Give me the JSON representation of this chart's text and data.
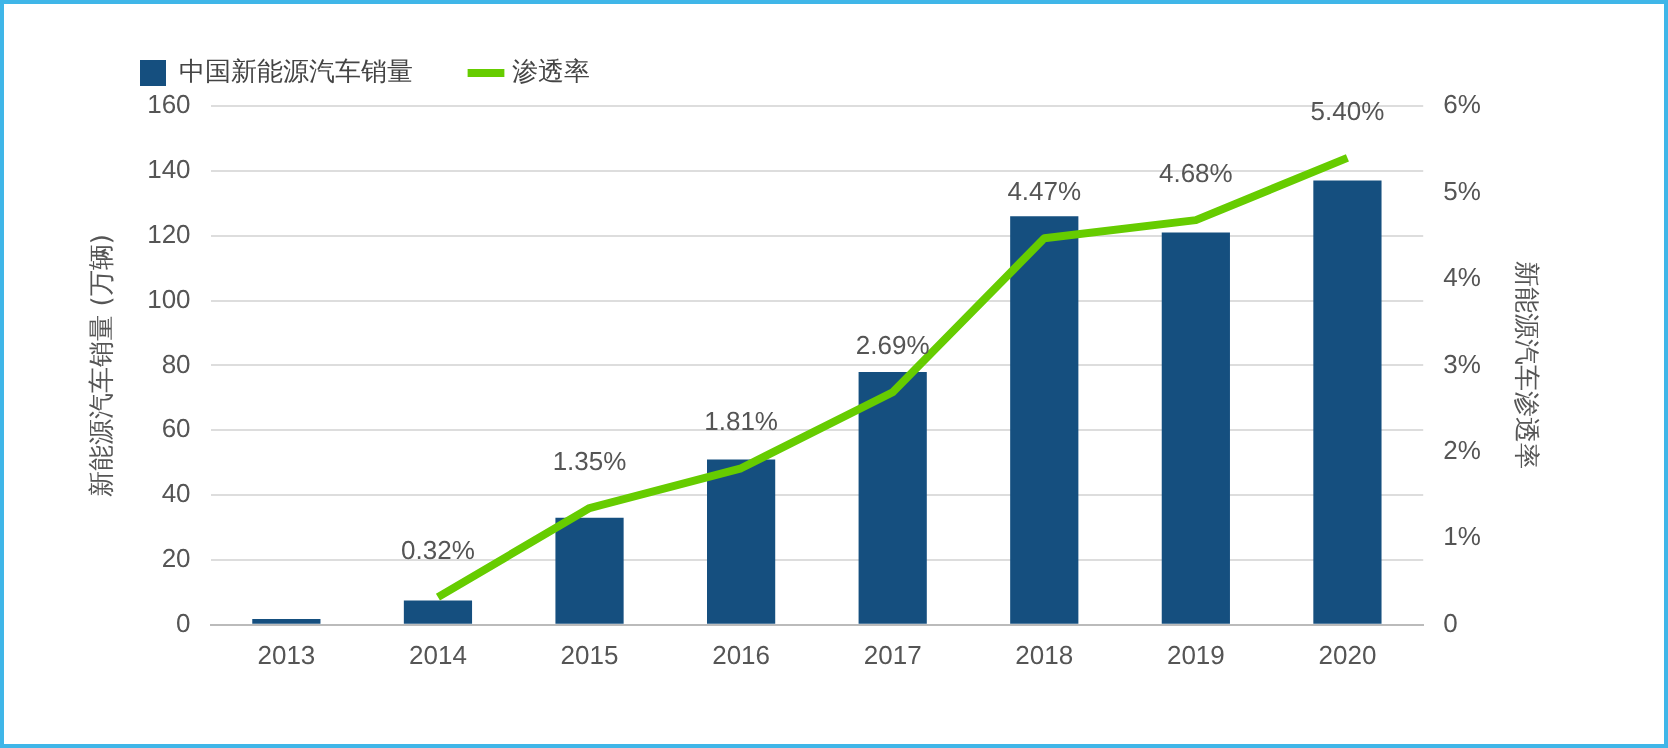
{
  "chart_data": {
    "type": "bar",
    "categories": [
      "2013",
      "2014",
      "2015",
      "2016",
      "2017",
      "2018",
      "2019",
      "2020"
    ],
    "series": [
      {
        "name": "中国新能源汽车销量",
        "color": "#154f7f",
        "values": [
          1.8,
          7.5,
          33,
          51,
          78,
          126,
          121,
          137
        ]
      },
      {
        "name": "渗透率",
        "type": "line",
        "axis": "y2",
        "color": "#66cc00",
        "values": [
          null,
          0.32,
          1.35,
          1.81,
          2.69,
          4.47,
          4.68,
          5.4
        ],
        "value_labels": [
          null,
          "0.32%",
          "1.35%",
          "1.81%",
          "2.69%",
          "4.47%",
          "4.68%",
          "5.40%"
        ]
      }
    ],
    "ylabel": "新能源汽车销量 (万辆)",
    "y2label": "新能源汽车渗透率",
    "ylim": [
      0,
      160
    ],
    "yticks": [
      0,
      20,
      40,
      60,
      80,
      100,
      120,
      140,
      160
    ],
    "y2lim": [
      0,
      6
    ],
    "y2ticks": [
      0,
      {
        "value": 1,
        "label": "1%"
      },
      {
        "value": 2,
        "label": "2%"
      },
      {
        "value": 3,
        "label": "3%"
      },
      {
        "value": 4,
        "label": "4%"
      },
      {
        "value": 5,
        "label": "5%"
      },
      {
        "value": 6,
        "label": "6%"
      }
    ],
    "grid": "y",
    "legend": "top left",
    "marker": "none",
    "line_style": "solid"
  }
}
